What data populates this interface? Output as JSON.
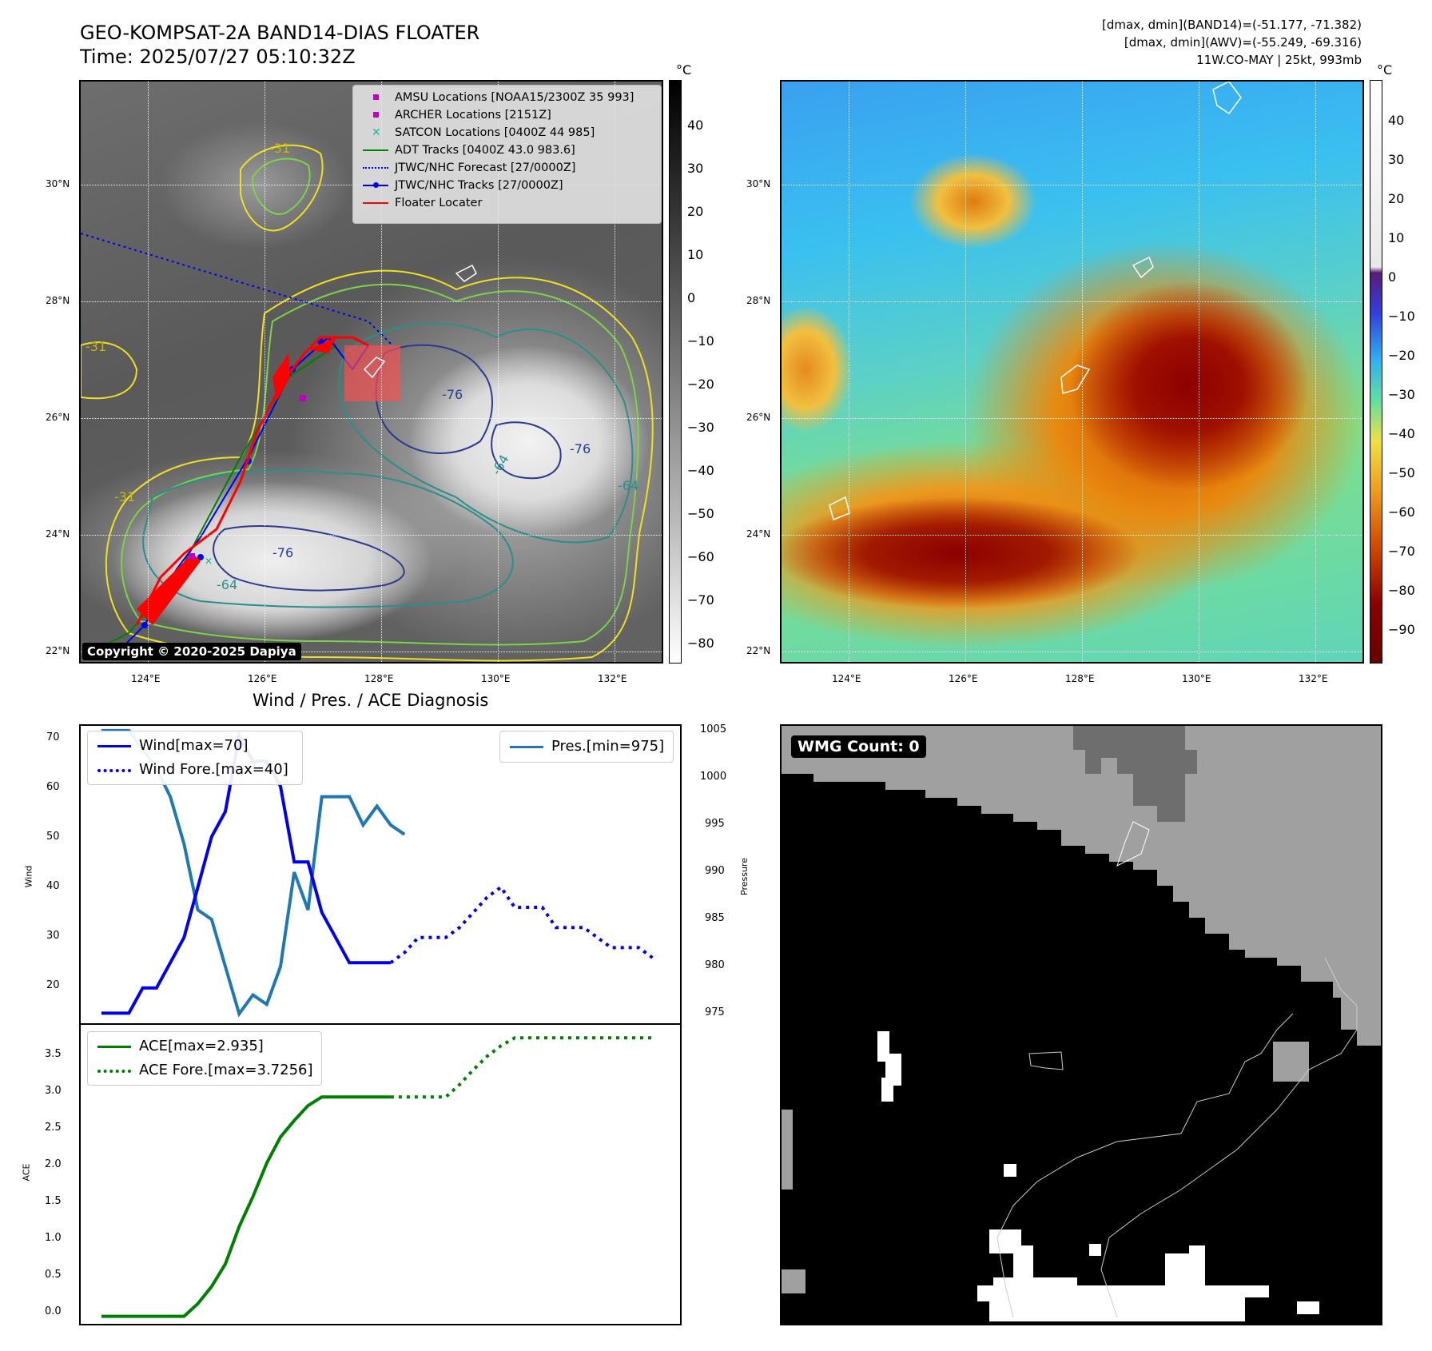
{
  "header": {
    "title_line1": "GEO-KOMPSAT-2A BAND14-DIAS FLOATER",
    "title_line2": "Time: 2025/07/27 05:10:32Z",
    "info_line1": "[dmax, dmin](BAND14)=(-51.177, -71.382)",
    "info_line2": "[dmax, dmin](AWV)=(-55.249, -69.316)",
    "info_line3": "11W.CO-MAY | 25kt, 993mb"
  },
  "map": {
    "lat_ticks": [
      "30°N",
      "28°N",
      "26°N",
      "24°N",
      "22°N"
    ],
    "lon_ticks": [
      "124°E",
      "126°E",
      "128°E",
      "130°E",
      "132°E"
    ],
    "contour_labels": [
      "-76",
      "-76",
      "-64",
      "-64",
      "-76",
      "-64",
      "-31",
      "-31",
      "-31"
    ],
    "copyright": "Copyright © 2020-2025 Dapiya"
  },
  "legend": {
    "amsu": "AMSU Locations [NOAA15/2300Z 35 993]",
    "archer": "ARCHER Locations [2151Z]",
    "satcon": "SATCON Locations [0400Z 44 985]",
    "adt": "ADT Tracks [0400Z 43.0 983.6]",
    "forecast": "JTWC/NHC Forecast [27/0000Z]",
    "tracks": "JTWC/NHC Tracks [27/0000Z]",
    "floater": "Floater Locater"
  },
  "colorbar_gray": {
    "unit": "°C",
    "ticks": [
      "40",
      "30",
      "20",
      "10",
      "0",
      "−10",
      "−20",
      "−30",
      "−40",
      "−50",
      "−60",
      "−70",
      "−80"
    ]
  },
  "colorbar_awv": {
    "unit": "°C",
    "ticks": [
      "40",
      "30",
      "20",
      "10",
      "0",
      "−10",
      "−20",
      "−30",
      "−40",
      "−50",
      "−60",
      "−70",
      "−80",
      "−90"
    ]
  },
  "diagnosis": {
    "title": "Wind / Pres. / ACE Diagnosis",
    "wind_ylabel": "Wind",
    "pres_ylabel": "Pressure",
    "ace_ylabel": "ACE",
    "wind_yticks": [
      "70",
      "60",
      "50",
      "40",
      "30",
      "20"
    ],
    "pres_yticks": [
      "1005",
      "1000",
      "995",
      "990",
      "985",
      "980",
      "975"
    ],
    "ace_yticks": [
      "3.5",
      "3.0",
      "2.5",
      "2.0",
      "1.5",
      "1.0",
      "0.5",
      "0.0"
    ],
    "wind_legend": "Wind[max=70]",
    "wind_fore_legend": "Wind Fore.[max=40]",
    "pres_legend": "Pres.[min=975]",
    "ace_legend": "ACE[max=2.935]",
    "ace_fore_legend": "ACE Fore.[max=3.7256]"
  },
  "wmg": {
    "label": "WMG Count: 0"
  },
  "colors": {
    "wind": "#0000ee",
    "pressure": "#1f77b4",
    "ace": "#008000",
    "amsu": "#c000c0",
    "satcon": "#20b2aa",
    "floater": "#ff0000"
  },
  "chart_data": [
    {
      "type": "line",
      "title": "Wind / Pres. / ACE Diagnosis",
      "ylabel": "Wind",
      "ylim": [
        13,
        72
      ],
      "series": [
        {
          "name": "Wind[max=70]",
          "x": [
            0,
            1,
            2,
            3,
            4,
            5,
            6,
            7,
            8,
            9,
            10,
            11,
            12,
            13,
            14,
            15,
            16,
            17,
            18,
            19,
            20,
            21
          ],
          "values": [
            15,
            15,
            15,
            20,
            20,
            25,
            30,
            40,
            50,
            55,
            70,
            65,
            65,
            60,
            45,
            45,
            35,
            30,
            25,
            25,
            25,
            25
          ]
        },
        {
          "name": "Wind Fore.[max=40]",
          "x": [
            21,
            22,
            23,
            24,
            25,
            26,
            27,
            28,
            29,
            30,
            31,
            32,
            33,
            34,
            35,
            36,
            37,
            38,
            39,
            40
          ],
          "values": [
            25,
            27,
            30,
            30,
            30,
            32,
            35,
            38,
            40,
            36,
            36,
            36,
            32,
            32,
            32,
            30,
            28,
            28,
            28,
            26
          ]
        }
      ]
    },
    {
      "type": "line",
      "ylabel": "Pressure",
      "ylim": [
        974,
        1005.5
      ],
      "series": [
        {
          "name": "Pres.[min=975]",
          "x": [
            0,
            1,
            2,
            3,
            4,
            5,
            6,
            7,
            8,
            9,
            10,
            11,
            12,
            13,
            14,
            15,
            16,
            17,
            18,
            19,
            20,
            21,
            22
          ],
          "values": [
            1005,
            1005,
            1005,
            1003,
            1001,
            998,
            993,
            986,
            985,
            980,
            975,
            977,
            976,
            980,
            990,
            986,
            998,
            998,
            998,
            995,
            997,
            995,
            994
          ]
        }
      ]
    },
    {
      "type": "line",
      "ylabel": "ACE",
      "ylim": [
        -0.1,
        3.9
      ],
      "series": [
        {
          "name": "ACE[max=2.935]",
          "x": [
            0,
            1,
            2,
            3,
            4,
            5,
            6,
            7,
            8,
            9,
            10,
            11,
            12,
            13,
            14,
            15,
            16,
            17,
            18,
            19,
            20,
            21
          ],
          "values": [
            0,
            0,
            0,
            0,
            0,
            0,
            0,
            0.17,
            0.4,
            0.7,
            1.2,
            1.6,
            2.05,
            2.4,
            2.62,
            2.82,
            2.935,
            2.935,
            2.935,
            2.935,
            2.935,
            2.935
          ]
        },
        {
          "name": "ACE Fore.[max=3.7256]",
          "x": [
            21,
            22,
            23,
            24,
            25,
            26,
            27,
            28,
            29,
            30,
            31,
            32,
            33,
            34,
            35,
            36,
            37,
            38,
            39,
            40
          ],
          "values": [
            2.935,
            2.935,
            2.935,
            2.935,
            2.935,
            3.1,
            3.3,
            3.48,
            3.62,
            3.7256,
            3.7256,
            3.7256,
            3.7256,
            3.7256,
            3.7256,
            3.7256,
            3.7256,
            3.7256,
            3.7256,
            3.7256
          ]
        }
      ]
    }
  ]
}
